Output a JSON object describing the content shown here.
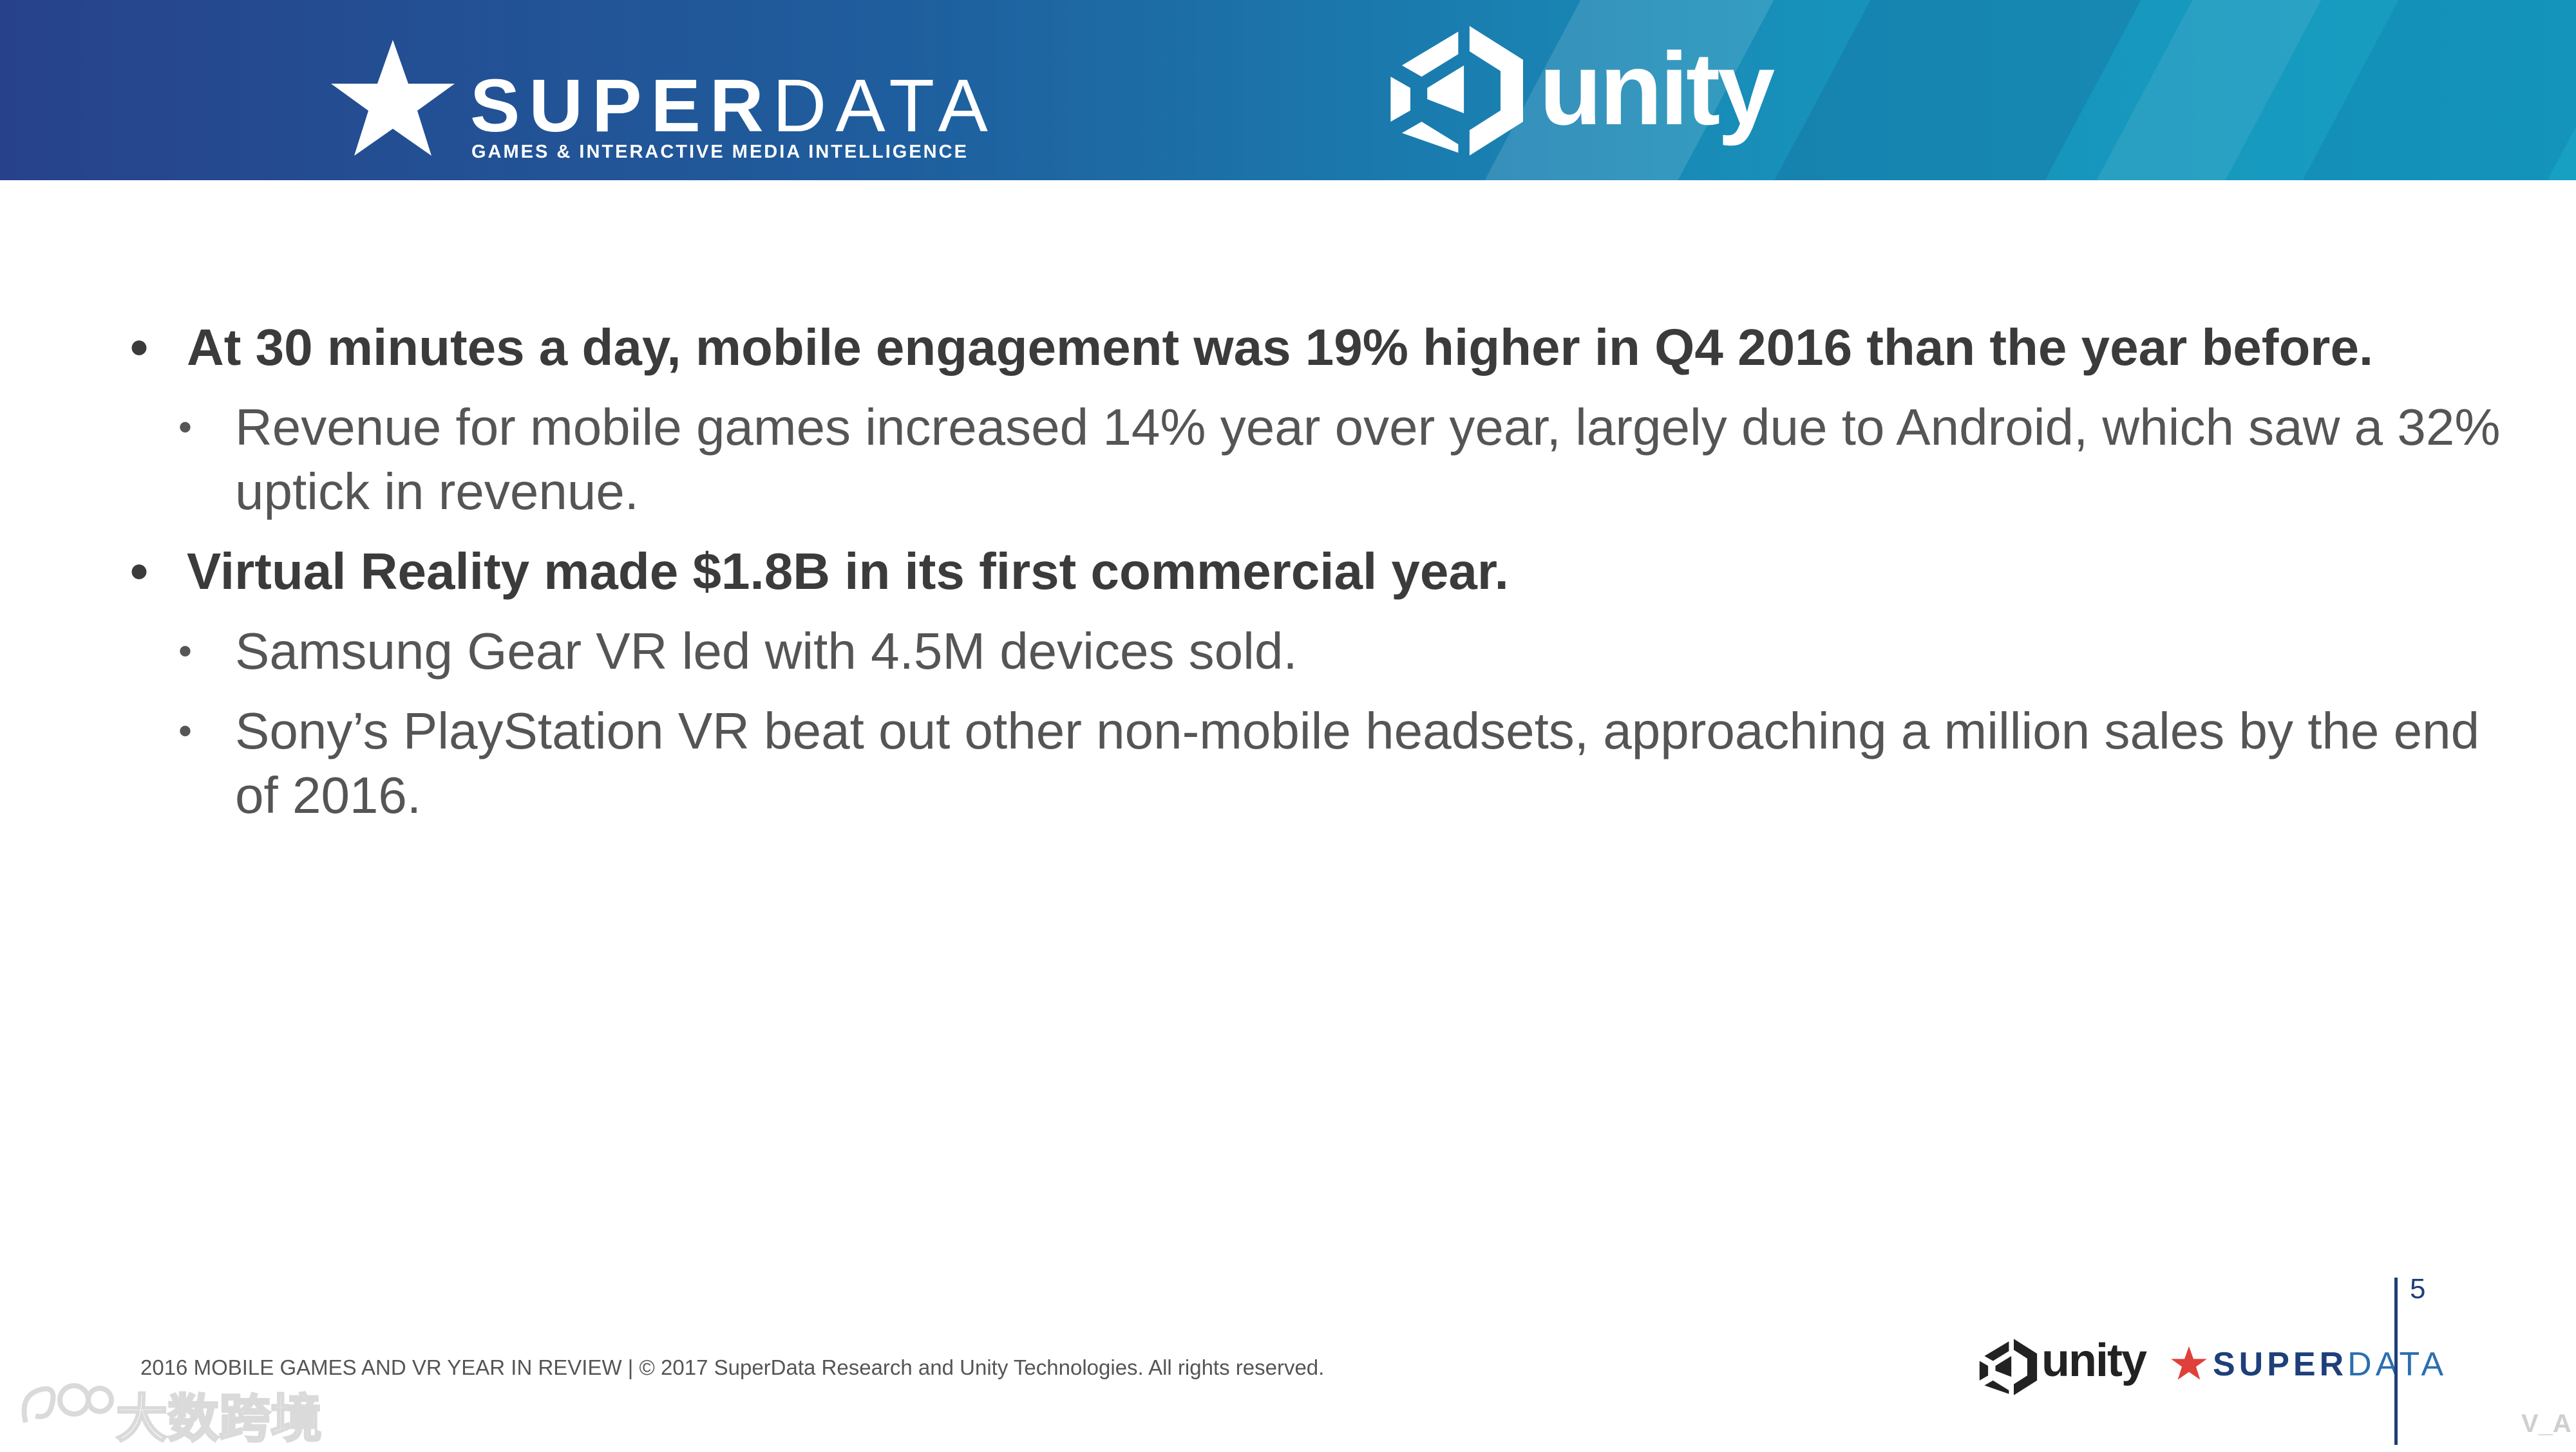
{
  "header": {
    "superdata_logo": {
      "brand_bold": "SUPER",
      "brand_light": "DATA",
      "tagline": "GAMES & INTERACTIVE MEDIA ",
      "tagline_bold": "INTELLIGENCE"
    },
    "unity_logo": {
      "wordmark": "unity"
    },
    "colors": {
      "banner_start": "#27428a",
      "banner_end": "#17a0c2"
    }
  },
  "content": {
    "bullets": [
      {
        "text": "At 30 minutes a day, mobile engagement was 19% higher in Q4 2016 than the year before.",
        "sub": [
          "Revenue for mobile games increased 14% year over year, largely due to Android, which saw a 32% uptick in revenue."
        ]
      },
      {
        "text": "Virtual Reality made $1.8B in its first commercial year.",
        "sub": [
          "Samsung Gear VR led with 4.5M devices sold.",
          "Sony’s PlayStation VR beat out other non-mobile headsets, approaching a million sales by the end of 2016."
        ]
      }
    ]
  },
  "footer": {
    "text": "2016 MOBILE GAMES AND VR YEAR IN REVIEW  |  © 2017 SuperData Research and Unity Technologies. All rights reserved.",
    "unity_wordmark": "unity",
    "superdata_bold": "SUPER",
    "superdata_light": "DATA",
    "page_number": "5",
    "colors": {
      "navy": "#1e3f7a",
      "star_red": "#e0403a"
    }
  },
  "watermark": {
    "text": "大数跨境",
    "corner": "V_A"
  }
}
